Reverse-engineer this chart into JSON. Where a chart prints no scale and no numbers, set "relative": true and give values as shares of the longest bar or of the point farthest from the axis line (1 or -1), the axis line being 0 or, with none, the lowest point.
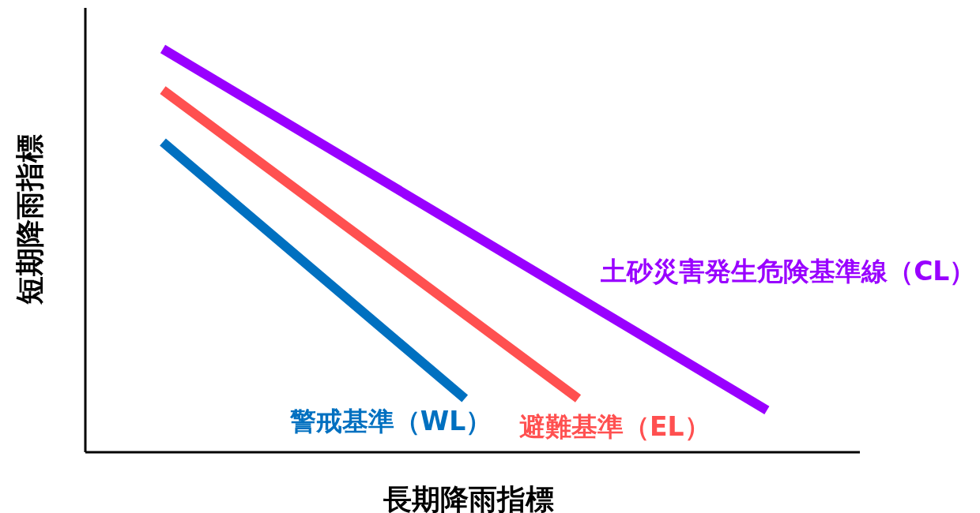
{
  "chart_data": {
    "type": "line",
    "relative": true,
    "xlabel": "長期降雨指標",
    "ylabel": "短期降雨指標",
    "categories": [
      null,
      null,
      null,
      null,
      null,
      null,
      null,
      null,
      null,
      null,
      null,
      null,
      null,
      null,
      null,
      null,
      null
    ],
    "series": [
      {
        "name": "警戒基準（WL）",
        "color": "#0070c0",
        "values": [
          0.769,
          null,
          null,
          null,
          null,
          null,
          null,
          null,
          0.133,
          null,
          null,
          null,
          null,
          null,
          null,
          null,
          null
        ]
      },
      {
        "name": "避難基準（EL）",
        "color": "#ff5050",
        "values": [
          0.898,
          null,
          null,
          null,
          null,
          null,
          null,
          null,
          null,
          null,
          null,
          0.133,
          null,
          null,
          null,
          null,
          null
        ]
      },
      {
        "name": "土砂災害発生危険基準線（CL）",
        "color": "#9900ff",
        "values": [
          1,
          null,
          null,
          null,
          null,
          null,
          null,
          null,
          null,
          null,
          null,
          null,
          null,
          null,
          null,
          null,
          0.104
        ]
      }
    ]
  }
}
